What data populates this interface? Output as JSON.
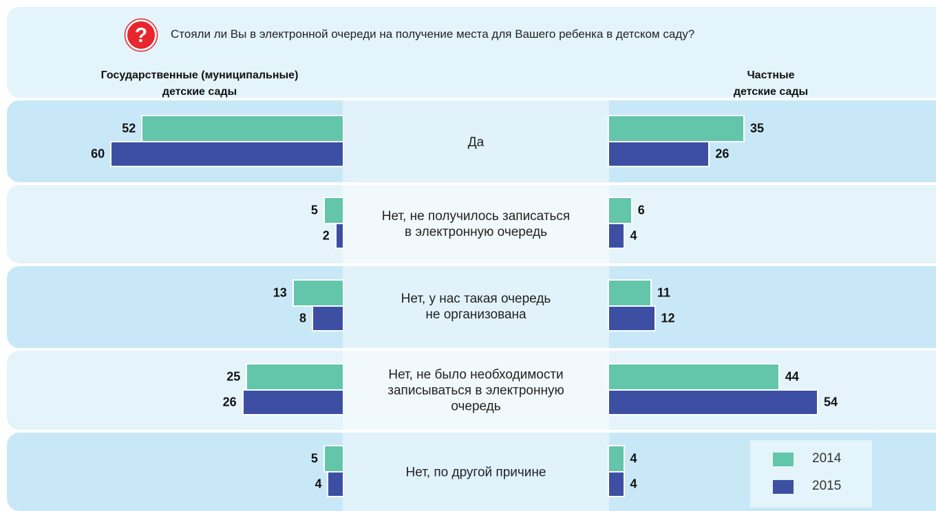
{
  "chart_data": {
    "type": "bar",
    "title": "Стояли ли Вы в электронной очереди на получение места для Вашего ребенка в детском саду?",
    "categories": [
      "Да",
      "Нет, не получилось записаться\nв электронную очередь",
      "Нет, у нас такая очередь\nне организована",
      "Нет, не было необходимости\nзаписываться в электронную\nочередь",
      "Нет, по другой причине"
    ],
    "series": [
      {
        "name": "2014",
        "color": "#63c5a9"
      },
      {
        "name": "2015",
        "color": "#3c4fa2"
      }
    ],
    "panels": [
      {
        "title": "Государственные (муниципальные)\nдетские сады",
        "series": [
          {
            "values": [
              52,
              5,
              13,
              25,
              5
            ]
          },
          {
            "values": [
              60,
              2,
              8,
              26,
              4
            ]
          }
        ]
      },
      {
        "title": "Частные\nдетские сады",
        "series": [
          {
            "values": [
              35,
              6,
              11,
              44,
              4
            ]
          },
          {
            "values": [
              26,
              4,
              12,
              54,
              4
            ]
          }
        ]
      }
    ]
  }
}
